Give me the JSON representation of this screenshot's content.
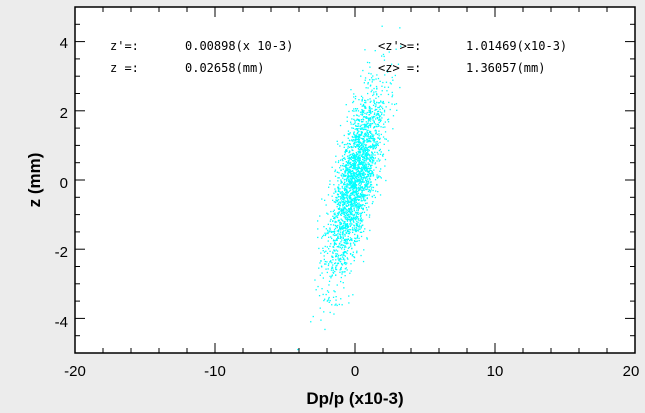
{
  "chart_data": {
    "type": "scatter",
    "title": "",
    "xlabel": "Dp/p (x10-3)",
    "ylabel": "z (mm)",
    "xlim": [
      -20,
      20
    ],
    "ylim": [
      -5,
      5
    ],
    "x_ticks": [
      "-20",
      "-10",
      "0",
      "10",
      "20"
    ],
    "y_ticks": [
      "4",
      "2",
      "0",
      "-2",
      "-4"
    ],
    "grid": false,
    "point_color": "#00ffff",
    "background": "#ffffff",
    "distribution": {
      "num_points": 2500,
      "x_center": 0.0,
      "x_sigma": 1.0,
      "z_center": 0.0,
      "z_sigma": 1.36,
      "correlation": 0.72
    },
    "annotations": {
      "zp_rms_label": "z'=:",
      "zp_rms_value": "0.00898(x 10-3)",
      "z_rms_label": "z =:",
      "z_rms_value": "0.02658(mm)",
      "zp_avg_label": "<z'>=:",
      "zp_avg_value": "1.01469(x10-3)",
      "z_avg_label": "<z> =:",
      "z_avg_value": "1.36057(mm)"
    }
  }
}
